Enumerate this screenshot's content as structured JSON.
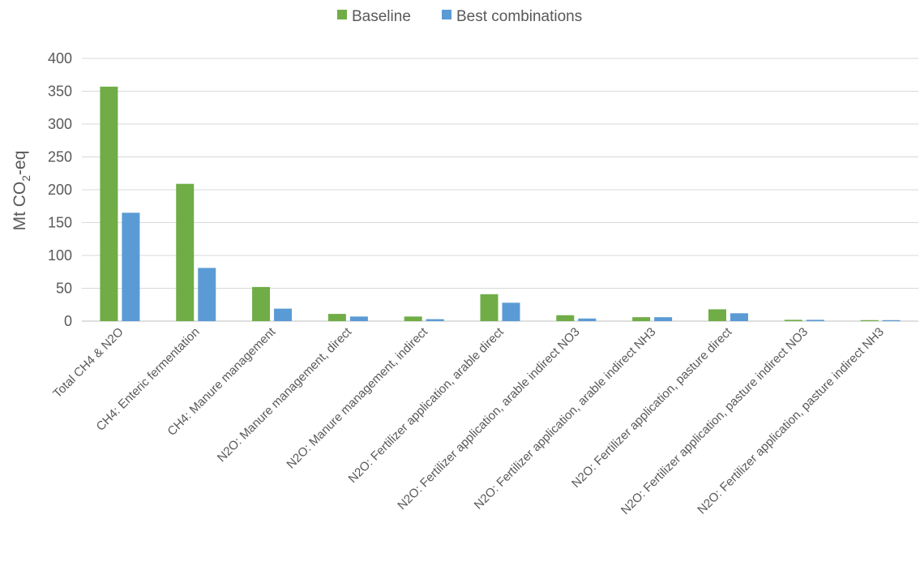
{
  "chart_data": {
    "type": "bar",
    "ylabel_main": "Mt CO",
    "ylabel_sub": "2",
    "ylabel_tail": "-eq",
    "ylim": [
      0,
      400
    ],
    "yticks": [
      0,
      50,
      100,
      150,
      200,
      250,
      300,
      350,
      400
    ],
    "grid": true,
    "legend_position": "top-center",
    "categories": [
      "Total CH4 & N2O",
      "CH4: Enteric fermentation",
      "CH4: Manure management",
      "N2O: Manure management, direct",
      "N2O: Manure management, indirect",
      "N2O: Fertilizer application, arable direct",
      "N2O: Fertilizer application, arable indirect NO3",
      "N2O: Fertilizer application, arable indirect NH3",
      "N2O: Fertilizer application, pasture direct",
      "N2O: Fertilizer application, pasture indirect NO3",
      "N2O: Fertilizer application, pasture indirect NH3"
    ],
    "series": [
      {
        "name": "Baseline",
        "color": "#70ad47",
        "values": [
          357,
          209,
          52,
          11,
          7,
          41,
          9,
          6,
          18,
          2,
          1.5
        ]
      },
      {
        "name": "Best combinations",
        "color": "#5b9bd5",
        "values": [
          165,
          81,
          19,
          7,
          3,
          28,
          4,
          6,
          12,
          2,
          1.5
        ]
      }
    ]
  }
}
